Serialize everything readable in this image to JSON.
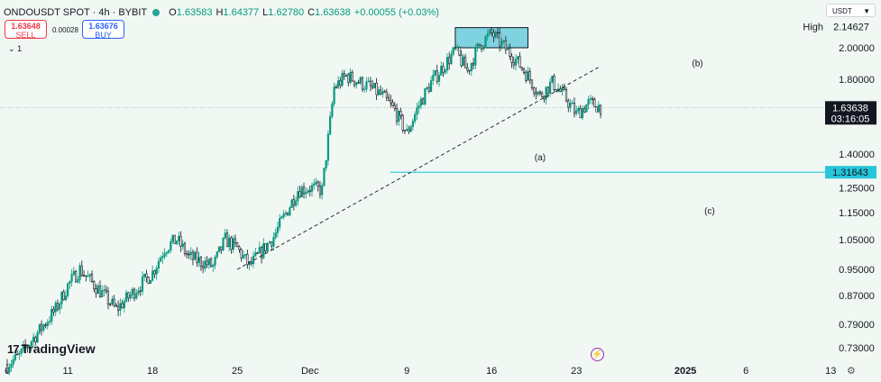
{
  "header": {
    "title": "ONDOUSDT SPOT · 4h · BYBIT",
    "open_label": "O",
    "open": "1.63583",
    "high_label": "H",
    "high": "1.64377",
    "low_label": "L",
    "low": "1.62780",
    "close_label": "C",
    "close": "1.63638",
    "change": "+0.00055 (+0.03%)"
  },
  "trade": {
    "sell_price": "1.63648",
    "sell_label": "SELL",
    "spread": "0.00028",
    "buy_price": "1.63676",
    "buy_label": "BUY"
  },
  "interval_indicator": "1",
  "currency": "USDT",
  "logo_text": "TradingView",
  "colors": {
    "background": "#f1f8f3",
    "up": "#089981",
    "down": "#131722",
    "level_line": "#26c6da",
    "label_dark": "#131722",
    "zone_fill": "#7fd3e0"
  },
  "icons": [
    "currency-chevron-icon",
    "lightning-icon",
    "settings-icon",
    "tradingview-logo-icon"
  ],
  "chart_data": {
    "type": "candlestick",
    "y_scale": "log",
    "price_axis_labels": [
      "2.00000",
      "1.80000",
      "1.60000",
      "1.40000",
      "1.25000",
      "1.15000",
      "1.05000",
      "0.95000",
      "0.87000",
      "0.79000",
      "0.73000"
    ],
    "time_axis_labels": [
      "6",
      "11",
      "18",
      "25",
      "Dec",
      "9",
      "16",
      "23",
      "2025",
      "6",
      "13"
    ],
    "high_tag": {
      "label": "High",
      "value": "2.14627"
    },
    "last_price": {
      "value": "1.63638",
      "countdown": "03:16:05"
    },
    "level": {
      "value": "1.31643"
    },
    "annotations": [
      "(a)",
      "(b)",
      "(c)"
    ],
    "anchors": [
      {
        "x": "Nov 6",
        "y": 0.69
      },
      {
        "x": "Nov 7",
        "y": 0.71
      },
      {
        "x": "Nov 10",
        "y": 0.83
      },
      {
        "x": "Nov 11",
        "y": 0.9
      },
      {
        "x": "Nov 12",
        "y": 0.95
      },
      {
        "x": "Nov 14",
        "y": 0.87
      },
      {
        "x": "Nov 15",
        "y": 0.83
      },
      {
        "x": "Nov 18",
        "y": 0.94
      },
      {
        "x": "Nov 19",
        "y": 1.02
      },
      {
        "x": "Nov 20",
        "y": 1.05
      },
      {
        "x": "Nov 21",
        "y": 0.99
      },
      {
        "x": "Nov 23",
        "y": 0.96
      },
      {
        "x": "Nov 24",
        "y": 1.05
      },
      {
        "x": "Nov 25",
        "y": 1.02
      },
      {
        "x": "Nov 26",
        "y": 0.96
      },
      {
        "x": "Nov 28",
        "y": 1.06
      },
      {
        "x": "Nov 30",
        "y": 1.24
      },
      {
        "x": "Dec 1",
        "y": 1.25
      },
      {
        "x": "Dec 2",
        "y": 1.24
      },
      {
        "x": "Dec 3",
        "y": 1.75
      },
      {
        "x": "Dec 4",
        "y": 1.82
      },
      {
        "x": "Dec 6",
        "y": 1.75
      },
      {
        "x": "Dec 7",
        "y": 1.7
      },
      {
        "x": "Dec 8",
        "y": 1.62
      },
      {
        "x": "Dec 9",
        "y": 1.5
      },
      {
        "x": "Dec 10",
        "y": 1.65
      },
      {
        "x": "Dec 11",
        "y": 1.78
      },
      {
        "x": "Dec 13",
        "y": 1.98
      },
      {
        "x": "Dec 14",
        "y": 1.85
      },
      {
        "x": "Dec 15",
        "y": 2.02
      },
      {
        "x": "Dec 16",
        "y": 2.1
      },
      {
        "x": "Dec 18",
        "y": 1.92
      },
      {
        "x": "Dec 19",
        "y": 1.82
      },
      {
        "x": "Dec 20",
        "y": 1.7
      },
      {
        "x": "Dec 21",
        "y": 1.78
      },
      {
        "x": "Dec 22",
        "y": 1.7
      },
      {
        "x": "Dec 23",
        "y": 1.6
      },
      {
        "x": "Dec 24",
        "y": 1.66
      },
      {
        "x": "Dec 25",
        "y": 1.64
      }
    ],
    "trendline": {
      "from": {
        "x": "Nov 25",
        "y": 0.95
      },
      "to": {
        "x": "Dec 25",
        "y": 1.88
      }
    },
    "resistance_zone": {
      "from": "Dec 13",
      "to": "Dec 19",
      "low": 2.0,
      "high": 2.14
    }
  }
}
